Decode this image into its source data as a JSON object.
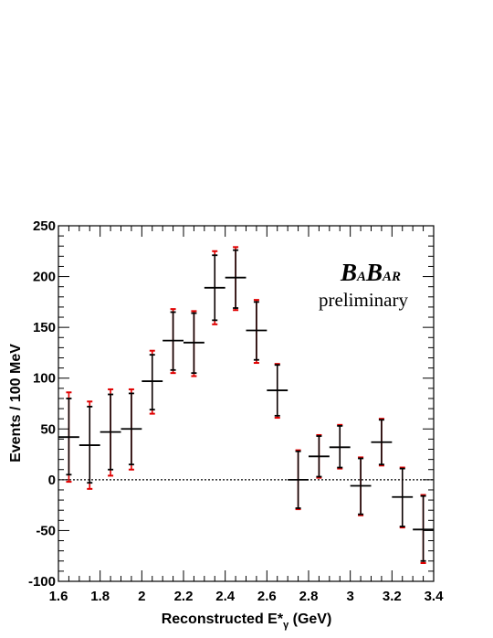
{
  "chart_data": {
    "type": "scatter",
    "title": "",
    "xlabel": "Reconstructed E*",
    "xlabel_sub": "γ",
    "xlabel_unit": " (GeV)",
    "ylabel": "Events / 100 MeV",
    "xlim": [
      1.6,
      3.4
    ],
    "ylim": [
      -100,
      250
    ],
    "x_ticks": [
      "1.6",
      "1.8",
      "2",
      "2.2",
      "2.4",
      "2.6",
      "2.8",
      "3",
      "3.2",
      "3.4"
    ],
    "y_ticks": [
      "-100",
      "-50",
      "0",
      "50",
      "100",
      "150",
      "200",
      "250"
    ],
    "x_bin_halfwidth": 0.05,
    "logo": {
      "b1": "B",
      "a1": "A",
      "b2": "B",
      "a2": "AR"
    },
    "annotation": "preliminary",
    "zero_line": true,
    "grid": false,
    "colors": {
      "total_error": "#e00000",
      "stat_error": "#000000"
    },
    "points": [
      {
        "x": 1.65,
        "y": 42,
        "stat_lo": 5,
        "stat_hi": 80,
        "tot_lo": -2,
        "tot_hi": 86
      },
      {
        "x": 1.75,
        "y": 34,
        "stat_lo": -3,
        "stat_hi": 72,
        "tot_lo": -9,
        "tot_hi": 77
      },
      {
        "x": 1.85,
        "y": 47,
        "stat_lo": 10,
        "stat_hi": 84,
        "tot_lo": 4,
        "tot_hi": 89
      },
      {
        "x": 1.95,
        "y": 50,
        "stat_lo": 15,
        "stat_hi": 85,
        "tot_lo": 10,
        "tot_hi": 89
      },
      {
        "x": 2.05,
        "y": 97,
        "stat_lo": 69,
        "stat_hi": 123,
        "tot_lo": 65,
        "tot_hi": 127
      },
      {
        "x": 2.15,
        "y": 137,
        "stat_lo": 108,
        "stat_hi": 165,
        "tot_lo": 105,
        "tot_hi": 168
      },
      {
        "x": 2.25,
        "y": 135,
        "stat_lo": 105,
        "stat_hi": 164,
        "tot_lo": 102,
        "tot_hi": 166
      },
      {
        "x": 2.35,
        "y": 189,
        "stat_lo": 157,
        "stat_hi": 221,
        "tot_lo": 153,
        "tot_hi": 225
      },
      {
        "x": 2.45,
        "y": 199,
        "stat_lo": 169,
        "stat_hi": 226,
        "tot_lo": 167,
        "tot_hi": 229
      },
      {
        "x": 2.55,
        "y": 147,
        "stat_lo": 118,
        "stat_hi": 175,
        "tot_lo": 115,
        "tot_hi": 177
      },
      {
        "x": 2.65,
        "y": 88,
        "stat_lo": 63,
        "stat_hi": 113,
        "tot_lo": 61,
        "tot_hi": 114
      },
      {
        "x": 2.75,
        "y": 0,
        "stat_lo": -28,
        "stat_hi": 28,
        "tot_lo": -29,
        "tot_hi": 29
      },
      {
        "x": 2.85,
        "y": 23,
        "stat_lo": 3,
        "stat_hi": 43,
        "tot_lo": 2,
        "tot_hi": 44
      },
      {
        "x": 2.95,
        "y": 32,
        "stat_lo": 12,
        "stat_hi": 53,
        "tot_lo": 11,
        "tot_hi": 54
      },
      {
        "x": 3.05,
        "y": -6,
        "stat_lo": -34,
        "stat_hi": 21,
        "tot_lo": -35,
        "tot_hi": 22
      },
      {
        "x": 3.15,
        "y": 37,
        "stat_lo": 15,
        "stat_hi": 59,
        "tot_lo": 14,
        "tot_hi": 60
      },
      {
        "x": 3.25,
        "y": -17,
        "stat_lo": -46,
        "stat_hi": 11,
        "tot_lo": -47,
        "tot_hi": 12
      },
      {
        "x": 3.35,
        "y": -49,
        "stat_lo": -80,
        "stat_hi": -16,
        "tot_lo": -82,
        "tot_hi": -15
      }
    ]
  }
}
